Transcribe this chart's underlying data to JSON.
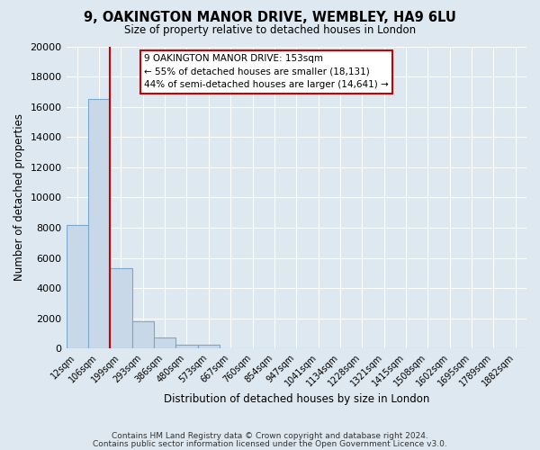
{
  "title": "9, OAKINGTON MANOR DRIVE, WEMBLEY, HA9 6LU",
  "subtitle": "Size of property relative to detached houses in London",
  "xlabel": "Distribution of detached houses by size in London",
  "ylabel": "Number of detached properties",
  "bin_labels": [
    "12sqm",
    "106sqm",
    "199sqm",
    "293sqm",
    "386sqm",
    "480sqm",
    "573sqm",
    "667sqm",
    "760sqm",
    "854sqm",
    "947sqm",
    "1041sqm",
    "1134sqm",
    "1228sqm",
    "1321sqm",
    "1415sqm",
    "1508sqm",
    "1602sqm",
    "1695sqm",
    "1789sqm",
    "1882sqm"
  ],
  "bar_values": [
    8200,
    16500,
    5300,
    1800,
    750,
    280,
    280,
    0,
    0,
    0,
    0,
    0,
    0,
    0,
    0,
    0,
    0,
    0,
    0,
    0,
    0
  ],
  "bar_color": "#c8d8e8",
  "bar_edgecolor": "#7aa8cc",
  "red_line_color": "#cc0000",
  "red_line_x": 1.5,
  "annotation_title": "9 OAKINGTON MANOR DRIVE: 153sqm",
  "annotation_line1": "← 55% of detached houses are smaller (18,131)",
  "annotation_line2": "44% of semi-detached houses are larger (14,641) →",
  "annotation_box_facecolor": "#ffffff",
  "annotation_box_edgecolor": "#cc0000",
  "ylim": [
    0,
    20000
  ],
  "yticks": [
    0,
    2000,
    4000,
    6000,
    8000,
    10000,
    12000,
    14000,
    16000,
    18000,
    20000
  ],
  "background_color": "#dde8f0",
  "plot_background": "#dde8f0",
  "grid_color": "#ffffff",
  "footer1": "Contains HM Land Registry data © Crown copyright and database right 2024.",
  "footer2": "Contains public sector information licensed under the Open Government Licence v3.0.",
  "figsize": [
    6.0,
    5.0
  ],
  "dpi": 100
}
